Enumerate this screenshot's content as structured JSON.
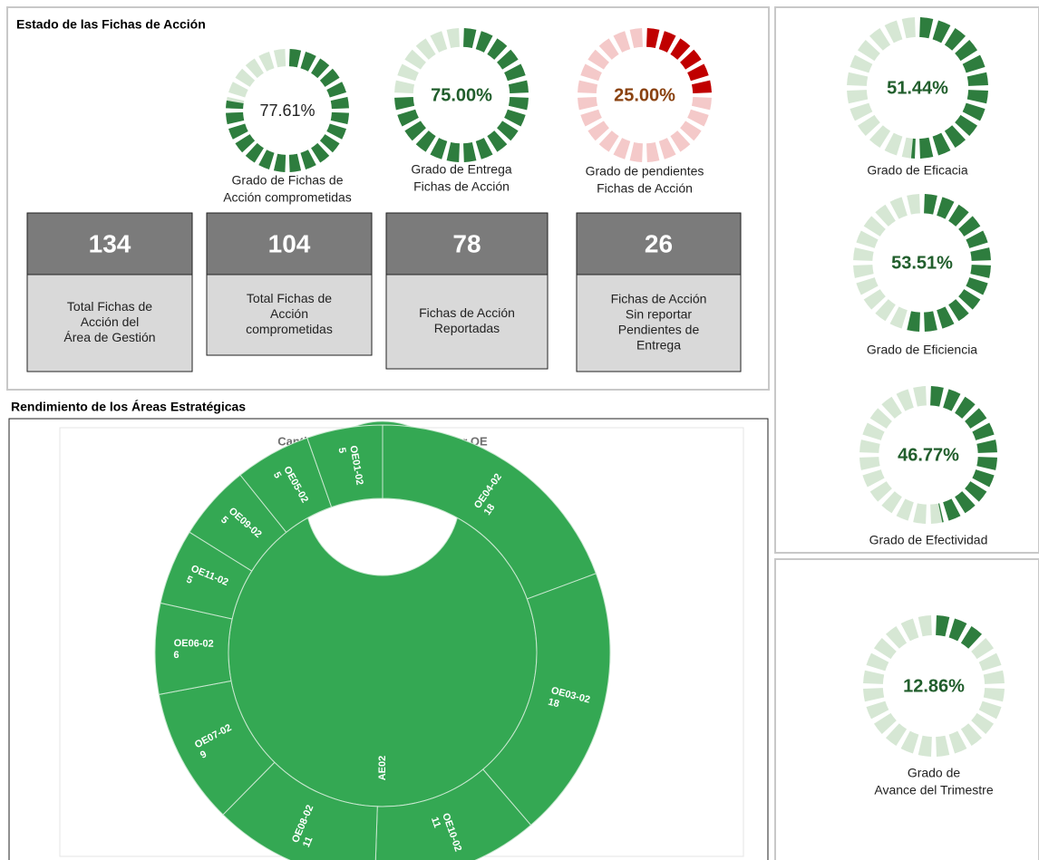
{
  "panels": {
    "estado_title": "Estado de las Fichas de Acción",
    "rendimiento_title": "Rendimiento de los Áreas Estratégicas"
  },
  "gauges": [
    {
      "value": 77.61,
      "label": "77.61%",
      "caption": [
        "Grado de Fichas de",
        "Acción comprometidas"
      ],
      "color": "#2e7d3e",
      "track_color": "#d6e7d4",
      "text_color": "#222222"
    },
    {
      "value": 75.0,
      "label": "75.00%",
      "caption": [
        "Grado de Entrega",
        "Fichas de Acción"
      ],
      "color": "#2e7d3e",
      "track_color": "#d6e7d4",
      "text_color": "#215e2c"
    },
    {
      "value": 25.0,
      "label": "25.00%",
      "caption": [
        "Grado de pendientes",
        "Fichas de Acción"
      ],
      "color": "#c00000",
      "track_color": "#f4c9c9",
      "text_color": "#8a4210"
    },
    {
      "value": 51.44,
      "label": "51.44%",
      "caption": [
        "Grado de Eficacia"
      ],
      "color": "#2e7d3e",
      "track_color": "#d6e7d4",
      "text_color": "#215e2c"
    },
    {
      "value": 53.51,
      "label": "53.51%",
      "caption": [
        "Grado de Eficiencia"
      ],
      "color": "#2e7d3e",
      "track_color": "#d6e7d4",
      "text_color": "#215e2c"
    },
    {
      "value": 46.77,
      "label": "46.77%",
      "caption": [
        "Grado de Efectividad"
      ],
      "color": "#2e7d3e",
      "track_color": "#d6e7d4",
      "text_color": "#215e2c"
    },
    {
      "value": 12.86,
      "label": "12.86%",
      "caption": [
        "Grado de",
        "Avance del Trimestre"
      ],
      "color": "#2e7d3e",
      "track_color": "#d6e7d4",
      "text_color": "#215e2c"
    }
  ],
  "cards": [
    {
      "value": 134,
      "caption": [
        "Total Fichas de",
        "Acción del",
        "Área de Gestión"
      ]
    },
    {
      "value": 104,
      "caption": [
        "Total Fichas de",
        "Acción",
        "comprometidas"
      ]
    },
    {
      "value": 78,
      "caption": [
        "Fichas de Acción",
        "Reportadas"
      ]
    },
    {
      "value": 26,
      "caption": [
        "Fichas de Acción",
        "Sin reportar",
        "Pendientes de",
        "Entrega"
      ]
    }
  ],
  "sunburst": {
    "type": "sunburst",
    "title": "Cantidad de Fichas de Acción por OE",
    "root": "AE02",
    "color": "#34a853",
    "categories": [
      "OE04-02",
      "OE03-02",
      "OE10-02",
      "OE08-02",
      "OE07-02",
      "OE06-02",
      "OE11-02",
      "OE09-02",
      "OE05-02",
      "OE01-02"
    ],
    "values": [
      18,
      18,
      11,
      11,
      9,
      6,
      5,
      5,
      5,
      5
    ]
  }
}
